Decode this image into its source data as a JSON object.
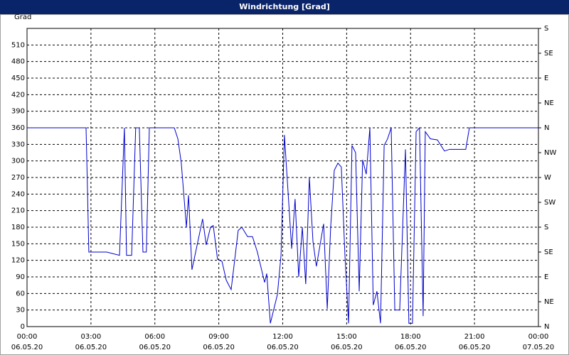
{
  "chart_data": {
    "type": "line",
    "title": "Windrichtung [Grad]",
    "y_label": "Grad",
    "xlim": [
      0,
      24
    ],
    "ylim": [
      0,
      540
    ],
    "y2lim": [
      0,
      540
    ],
    "xticks": [
      {
        "value": 0,
        "label": "00:00"
      },
      {
        "value": 3,
        "label": "03:00"
      },
      {
        "value": 6,
        "label": "06:00"
      },
      {
        "value": 9,
        "label": "09:00"
      },
      {
        "value": 12,
        "label": "12:00"
      },
      {
        "value": 15,
        "label": "15:00"
      },
      {
        "value": 18,
        "label": "18:00"
      },
      {
        "value": 21,
        "label": "21:00"
      },
      {
        "value": 24,
        "label": "00:00"
      }
    ],
    "xtick_dates": [
      "06.05.20",
      "06.05.20",
      "06.05.20",
      "06.05.20",
      "06.05.20",
      "06.05.20",
      "06.05.20",
      "06.05.20",
      "07.05.20"
    ],
    "yticks": [
      0,
      30,
      60,
      90,
      120,
      150,
      180,
      210,
      240,
      270,
      300,
      330,
      360,
      390,
      420,
      450,
      480,
      510
    ],
    "y2ticks": [
      {
        "value": 0,
        "label": "N"
      },
      {
        "value": 45,
        "label": "NE"
      },
      {
        "value": 90,
        "label": "E"
      },
      {
        "value": 135,
        "label": "SE"
      },
      {
        "value": 180,
        "label": "S"
      },
      {
        "value": 225,
        "label": "SW"
      },
      {
        "value": 270,
        "label": "W"
      },
      {
        "value": 315,
        "label": "NW"
      },
      {
        "value": 360,
        "label": "N"
      },
      {
        "value": 405,
        "label": "NE"
      },
      {
        "value": 450,
        "label": "E"
      },
      {
        "value": 495,
        "label": "SE"
      },
      {
        "value": 540,
        "label": "S"
      }
    ],
    "grid": true,
    "color": "#0000cc",
    "x": [
      0,
      2.77,
      2.84,
      2.9,
      3.74,
      4.34,
      4.57,
      4.67,
      4.91,
      5.1,
      5.27,
      5.44,
      5.6,
      5.74,
      6.91,
      7.08,
      7.24,
      7.48,
      7.58,
      7.74,
      8.24,
      8.41,
      8.61,
      8.74,
      8.94,
      9.15,
      9.35,
      9.58,
      9.91,
      10.08,
      10.35,
      10.58,
      10.81,
      11.15,
      11.25,
      11.42,
      11.75,
      11.92,
      12.08,
      12.25,
      12.42,
      12.58,
      12.75,
      12.92,
      13.08,
      13.25,
      13.42,
      13.58,
      13.92,
      14.09,
      14.25,
      14.42,
      14.59,
      14.75,
      14.92,
      15.09,
      15.25,
      15.42,
      15.59,
      15.75,
      15.92,
      16.09,
      16.25,
      16.42,
      16.59,
      16.76,
      16.92,
      17.09,
      17.26,
      17.49,
      17.76,
      17.92,
      18.09,
      18.26,
      18.42,
      18.59,
      18.69,
      18.93,
      19.26,
      19.59,
      19.83,
      20.59,
      20.76,
      24
    ],
    "values": [
      360,
      360,
      244,
      135,
      135,
      129,
      360,
      129,
      129,
      360,
      360,
      135,
      135,
      360,
      360,
      340,
      296,
      180,
      238,
      103,
      195,
      148,
      180,
      183,
      122,
      118,
      84,
      67,
      174,
      180,
      163,
      163,
      135,
      80,
      96,
      6,
      58,
      129,
      347,
      244,
      141,
      231,
      90,
      180,
      77,
      270,
      154,
      109,
      186,
      32,
      180,
      283,
      296,
      289,
      129,
      6,
      328,
      315,
      64,
      302,
      276,
      360,
      39,
      64,
      6,
      328,
      340,
      360,
      30,
      30,
      321,
      6,
      6,
      353,
      360,
      19,
      353,
      340,
      338,
      318,
      321,
      321,
      360,
      360
    ]
  }
}
